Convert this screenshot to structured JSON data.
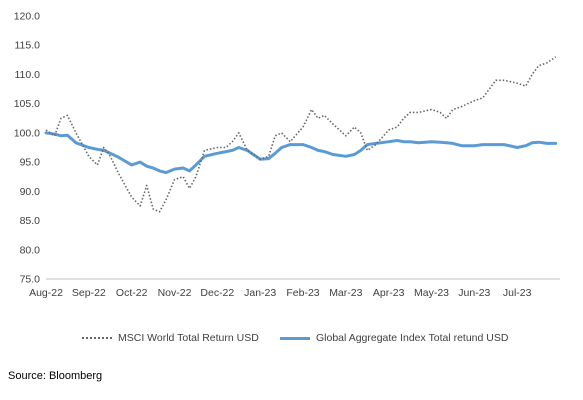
{
  "chart_data": {
    "type": "line",
    "title": "",
    "xlabel": "",
    "ylabel": "",
    "ylim": [
      75,
      120
    ],
    "yticks": [
      "75.0",
      "80.0",
      "85.0",
      "90.0",
      "95.0",
      "100.0",
      "105.0",
      "110.0",
      "115.0",
      "120.0"
    ],
    "categories": [
      "Aug-22",
      "Sep-22",
      "Oct-22",
      "Nov-22",
      "Dec-22",
      "Jan-23",
      "Feb-23",
      "Mar-23",
      "Apr-23",
      "May-23",
      "Jun-23",
      "Jul-23"
    ],
    "x": [
      0,
      0.2,
      0.35,
      0.5,
      0.7,
      1,
      1.2,
      1.35,
      1.5,
      1.7,
      2,
      2.2,
      2.35,
      2.5,
      2.65,
      2.8,
      3,
      3.2,
      3.35,
      3.5,
      3.7,
      4,
      4.2,
      4.35,
      4.5,
      4.7,
      5,
      5.2,
      5.35,
      5.5,
      5.7,
      6,
      6.2,
      6.35,
      6.5,
      6.7,
      7,
      7.2,
      7.35,
      7.5,
      7.7,
      8,
      8.2,
      8.35,
      8.5,
      8.7,
      9,
      9.2,
      9.35,
      9.5,
      9.7,
      10,
      10.2,
      10.35,
      10.5,
      10.7,
      11,
      11.2,
      11.35,
      11.5,
      11.7,
      11.9
    ],
    "series": [
      {
        "name": "MSCI World Total Return USD",
        "style": "dotted",
        "color": "#666666",
        "values": [
          100.5,
          99.5,
          102.5,
          103,
          100,
          96,
          94.5,
          97.5,
          96,
          93,
          89,
          87.5,
          91,
          87,
          86.5,
          88.5,
          92,
          92.5,
          90.5,
          92.5,
          97,
          97.5,
          97.5,
          98.5,
          100,
          97,
          95.5,
          96,
          99.5,
          100,
          98.5,
          101,
          104,
          102.5,
          103,
          101.5,
          99.5,
          101,
          100,
          97,
          98,
          100.5,
          101,
          102.5,
          103.5,
          103.5,
          104,
          103.5,
          102.5,
          104,
          104.5,
          105.5,
          106,
          107.5,
          109,
          109,
          108.5,
          108,
          110,
          111.5,
          112,
          113
        ]
      },
      {
        "name": "Global Aggregate Index Total retund USD",
        "style": "solid",
        "color": "#5b9bd5",
        "values": [
          100,
          99.8,
          99.5,
          99.6,
          98.3,
          97.5,
          97.2,
          97,
          96.5,
          95.8,
          94.5,
          95,
          94.3,
          94,
          93.5,
          93.2,
          93.8,
          94,
          93.5,
          94.5,
          96,
          96.5,
          96.8,
          97,
          97.5,
          97,
          95.5,
          95.6,
          96.5,
          97.5,
          98,
          98,
          97.5,
          97,
          96.8,
          96.3,
          96,
          96.3,
          97,
          98,
          98.2,
          98.5,
          98.7,
          98.5,
          98.5,
          98.3,
          98.5,
          98.4,
          98.3,
          98.2,
          97.8,
          97.8,
          98,
          98,
          98,
          98,
          97.5,
          97.8,
          98.3,
          98.4,
          98.2,
          98.2
        ]
      }
    ],
    "grid": false,
    "legend_position": "bottom"
  },
  "source": "Source: Bloomberg"
}
